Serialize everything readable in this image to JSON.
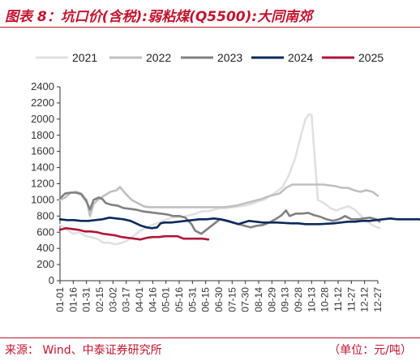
{
  "figure": {
    "title": "图表 8：坑口价(含税):弱粘煤(Q5500):大同南郊",
    "source": "来源：   Wind、中泰证券研究所",
    "unit": "（单位：元/吨）"
  },
  "colors": {
    "accent": "#c0152f",
    "s2021": "#e0e0e0",
    "s2022": "#bfbfbf",
    "s2023": "#808080",
    "s2024": "#0b2a5c",
    "s2025": "#b0153a"
  },
  "chart_data": {
    "type": "line",
    "ylim": [
      0,
      2400
    ],
    "yticks": [
      0,
      200,
      400,
      600,
      800,
      1000,
      1200,
      1400,
      1600,
      1800,
      2000,
      2200,
      2400
    ],
    "xticks": [
      "01-01",
      "01-16",
      "01-31",
      "02-15",
      "03-02",
      "03-17",
      "04-01",
      "04-16",
      "05-01",
      "05-16",
      "05-31",
      "06-15",
      "06-30",
      "07-15",
      "07-30",
      "08-14",
      "08-29",
      "09-13",
      "09-28",
      "10-13",
      "10-28",
      "11-12",
      "11-27",
      "12-12",
      "12-27"
    ],
    "grid": false,
    "legend": "top",
    "series": [
      {
        "name": "2021",
        "color_key": "s2021",
        "points": [
          [
            0,
            690
          ],
          [
            8,
            630
          ],
          [
            15,
            580
          ],
          [
            22,
            600
          ],
          [
            28,
            560
          ],
          [
            35,
            540
          ],
          [
            42,
            520
          ],
          [
            49,
            470
          ],
          [
            56,
            470
          ],
          [
            63,
            450
          ],
          [
            70,
            470
          ],
          [
            77,
            500
          ],
          [
            84,
            560
          ],
          [
            91,
            620
          ],
          [
            98,
            660
          ],
          [
            105,
            690
          ],
          [
            112,
            720
          ],
          [
            119,
            750
          ],
          [
            126,
            780
          ],
          [
            133,
            790
          ],
          [
            140,
            790
          ],
          [
            147,
            810
          ],
          [
            154,
            830
          ],
          [
            161,
            860
          ],
          [
            168,
            860
          ],
          [
            175,
            880
          ],
          [
            182,
            900
          ],
          [
            189,
            900
          ],
          [
            196,
            910
          ],
          [
            203,
            920
          ],
          [
            210,
            930
          ],
          [
            217,
            950
          ],
          [
            224,
            980
          ],
          [
            231,
            1000
          ],
          [
            238,
            1050
          ],
          [
            245,
            1100
          ],
          [
            252,
            1160
          ],
          [
            259,
            1300
          ],
          [
            266,
            1500
          ],
          [
            273,
            1800
          ],
          [
            278,
            2000
          ],
          [
            282,
            2060
          ],
          [
            285,
            2050
          ],
          [
            288,
            1600
          ],
          [
            292,
            1000
          ],
          [
            299,
            960
          ],
          [
            306,
            900
          ],
          [
            313,
            870
          ],
          [
            320,
            900
          ],
          [
            327,
            920
          ],
          [
            334,
            880
          ],
          [
            341,
            800
          ],
          [
            348,
            740
          ],
          [
            355,
            680
          ],
          [
            362,
            650
          ]
        ]
      },
      {
        "name": "2022",
        "color_key": "s2022",
        "points": [
          [
            0,
            1000
          ],
          [
            6,
            1030
          ],
          [
            12,
            1090
          ],
          [
            18,
            1100
          ],
          [
            24,
            1080
          ],
          [
            30,
            1000
          ],
          [
            34,
            800
          ],
          [
            38,
            950
          ],
          [
            44,
            1010
          ],
          [
            50,
            1050
          ],
          [
            57,
            1100
          ],
          [
            64,
            1120
          ],
          [
            68,
            1160
          ],
          [
            74,
            1080
          ],
          [
            81,
            1000
          ],
          [
            88,
            960
          ],
          [
            95,
            920
          ],
          [
            102,
            910
          ],
          [
            109,
            910
          ],
          [
            116,
            910
          ],
          [
            123,
            910
          ],
          [
            130,
            910
          ],
          [
            137,
            910
          ],
          [
            144,
            910
          ],
          [
            151,
            910
          ],
          [
            158,
            910
          ],
          [
            165,
            910
          ],
          [
            172,
            910
          ],
          [
            179,
            910
          ],
          [
            186,
            910
          ],
          [
            193,
            920
          ],
          [
            200,
            930
          ],
          [
            207,
            950
          ],
          [
            214,
            970
          ],
          [
            221,
            990
          ],
          [
            228,
            1010
          ],
          [
            235,
            1040
          ],
          [
            242,
            1060
          ],
          [
            249,
            1080
          ],
          [
            256,
            1150
          ],
          [
            263,
            1190
          ],
          [
            270,
            1190
          ],
          [
            277,
            1190
          ],
          [
            284,
            1190
          ],
          [
            291,
            1190
          ],
          [
            298,
            1190
          ],
          [
            305,
            1180
          ],
          [
            312,
            1170
          ],
          [
            319,
            1150
          ],
          [
            326,
            1150
          ],
          [
            333,
            1120
          ],
          [
            340,
            1100
          ],
          [
            347,
            1120
          ],
          [
            354,
            1100
          ],
          [
            360,
            1050
          ]
        ]
      },
      {
        "name": "2023",
        "color_key": "s2023",
        "points": [
          [
            0,
            1020
          ],
          [
            6,
            1080
          ],
          [
            12,
            1090
          ],
          [
            18,
            1090
          ],
          [
            24,
            1070
          ],
          [
            30,
            980
          ],
          [
            34,
            880
          ],
          [
            38,
            1000
          ],
          [
            44,
            1030
          ],
          [
            48,
            1010
          ],
          [
            52,
            960
          ],
          [
            58,
            940
          ],
          [
            65,
            930
          ],
          [
            72,
            900
          ],
          [
            79,
            890
          ],
          [
            86,
            880
          ],
          [
            93,
            860
          ],
          [
            100,
            850
          ],
          [
            107,
            840
          ],
          [
            114,
            830
          ],
          [
            121,
            820
          ],
          [
            128,
            800
          ],
          [
            135,
            800
          ],
          [
            142,
            780
          ],
          [
            149,
            700
          ],
          [
            153,
            620
          ],
          [
            160,
            580
          ],
          [
            167,
            640
          ],
          [
            174,
            700
          ],
          [
            181,
            760
          ],
          [
            188,
            740
          ],
          [
            195,
            720
          ],
          [
            202,
            700
          ],
          [
            209,
            680
          ],
          [
            216,
            660
          ],
          [
            223,
            680
          ],
          [
            230,
            690
          ],
          [
            237,
            720
          ],
          [
            244,
            760
          ],
          [
            251,
            810
          ],
          [
            256,
            870
          ],
          [
            260,
            800
          ],
          [
            267,
            830
          ],
          [
            274,
            830
          ],
          [
            281,
            840
          ],
          [
            288,
            810
          ],
          [
            295,
            790
          ],
          [
            302,
            760
          ],
          [
            309,
            740
          ],
          [
            316,
            760
          ],
          [
            323,
            800
          ],
          [
            330,
            760
          ],
          [
            337,
            760
          ],
          [
            344,
            770
          ],
          [
            351,
            780
          ],
          [
            358,
            760
          ],
          [
            362,
            730
          ]
        ]
      },
      {
        "name": "2024",
        "color_key": "s2024",
        "points": [
          [
            0,
            760
          ],
          [
            8,
            750
          ],
          [
            16,
            750
          ],
          [
            24,
            740
          ],
          [
            32,
            740
          ],
          [
            40,
            750
          ],
          [
            48,
            760
          ],
          [
            56,
            780
          ],
          [
            64,
            770
          ],
          [
            72,
            760
          ],
          [
            80,
            740
          ],
          [
            86,
            710
          ],
          [
            92,
            680
          ],
          [
            98,
            660
          ],
          [
            104,
            650
          ],
          [
            110,
            660
          ],
          [
            114,
            710
          ],
          [
            118,
            720
          ],
          [
            126,
            720
          ],
          [
            134,
            730
          ],
          [
            142,
            740
          ],
          [
            150,
            750
          ],
          [
            158,
            760
          ],
          [
            166,
            760
          ],
          [
            174,
            770
          ],
          [
            182,
            760
          ],
          [
            190,
            740
          ],
          [
            196,
            720
          ],
          [
            202,
            700
          ],
          [
            208,
            720
          ],
          [
            214,
            740
          ],
          [
            222,
            730
          ],
          [
            230,
            720
          ],
          [
            238,
            720
          ],
          [
            246,
            720
          ],
          [
            254,
            715
          ],
          [
            262,
            710
          ],
          [
            270,
            710
          ],
          [
            278,
            700
          ],
          [
            286,
            700
          ],
          [
            294,
            700
          ],
          [
            302,
            705
          ],
          [
            310,
            710
          ],
          [
            318,
            720
          ],
          [
            326,
            730
          ],
          [
            334,
            730
          ],
          [
            342,
            740
          ],
          [
            350,
            740
          ],
          [
            358,
            750
          ],
          [
            366,
            760
          ],
          [
            374,
            770
          ],
          [
            382,
            760
          ],
          [
            390,
            760
          ],
          [
            398,
            760
          ],
          [
            406,
            760
          ],
          [
            414,
            750
          ],
          [
            422,
            740
          ],
          [
            430,
            740
          ],
          [
            438,
            740
          ],
          [
            446,
            730
          ],
          [
            454,
            720
          ],
          [
            462,
            720
          ],
          [
            470,
            710
          ],
          [
            478,
            710
          ],
          [
            486,
            700
          ],
          [
            494,
            700
          ],
          [
            502,
            700
          ],
          [
            510,
            690
          ],
          [
            518,
            690
          ],
          [
            526,
            680
          ],
          [
            534,
            670
          ],
          [
            542,
            650
          ],
          [
            550,
            630
          ],
          [
            558,
            610
          ],
          [
            566,
            600
          ]
        ]
      },
      {
        "name": "2025",
        "color_key": "s2025",
        "points": [
          [
            0,
            630
          ],
          [
            7,
            650
          ],
          [
            14,
            640
          ],
          [
            21,
            630
          ],
          [
            28,
            610
          ],
          [
            35,
            610
          ],
          [
            42,
            600
          ],
          [
            49,
            580
          ],
          [
            56,
            570
          ],
          [
            63,
            560
          ],
          [
            70,
            540
          ],
          [
            77,
            530
          ],
          [
            84,
            520
          ],
          [
            91,
            510
          ],
          [
            98,
            530
          ],
          [
            105,
            540
          ],
          [
            112,
            540
          ],
          [
            119,
            550
          ],
          [
            126,
            550
          ],
          [
            133,
            550
          ],
          [
            140,
            520
          ],
          [
            147,
            520
          ],
          [
            154,
            520
          ],
          [
            161,
            520
          ],
          [
            168,
            510
          ]
        ]
      }
    ]
  }
}
